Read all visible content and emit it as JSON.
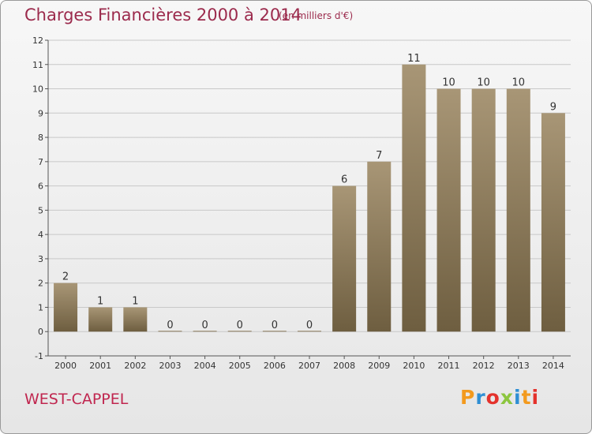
{
  "header": {
    "title": "Charges Financières 2000 à 2014",
    "subtitle": "(en milliers d'€)"
  },
  "footer": {
    "commune": "WEST-CAPPEL",
    "logo_letters": [
      "P",
      "r",
      "o",
      "x",
      "i",
      "t",
      "i"
    ],
    "logo_colors": [
      "#f39a1e",
      "#2f8fd4",
      "#e4322c",
      "#8cc63f",
      "#2f8fd4",
      "#f39a1e",
      "#e4322c"
    ]
  },
  "colors": {
    "bar_top": "#a89676",
    "bar_bottom": "#6e5e40",
    "title": "#9b2a4c",
    "commune": "#c0264f",
    "grid": "#c8c8c8"
  },
  "chart_data": {
    "type": "bar",
    "title": "Charges Financières 2000 à 2014",
    "subtitle": "(en milliers d'€)",
    "categories": [
      "2000",
      "2001",
      "2002",
      "2003",
      "2004",
      "2005",
      "2006",
      "2007",
      "2008",
      "2009",
      "2010",
      "2011",
      "2012",
      "2013",
      "2014"
    ],
    "values": [
      2,
      1,
      1,
      0,
      0,
      0,
      0,
      0,
      6,
      7,
      11,
      10,
      10,
      10,
      9
    ],
    "ylim": [
      -1,
      12
    ],
    "yticks": [
      -1,
      0,
      1,
      2,
      3,
      4,
      5,
      6,
      7,
      8,
      9,
      10,
      11,
      12
    ],
    "grid": "horizontal",
    "data_labels": true
  }
}
